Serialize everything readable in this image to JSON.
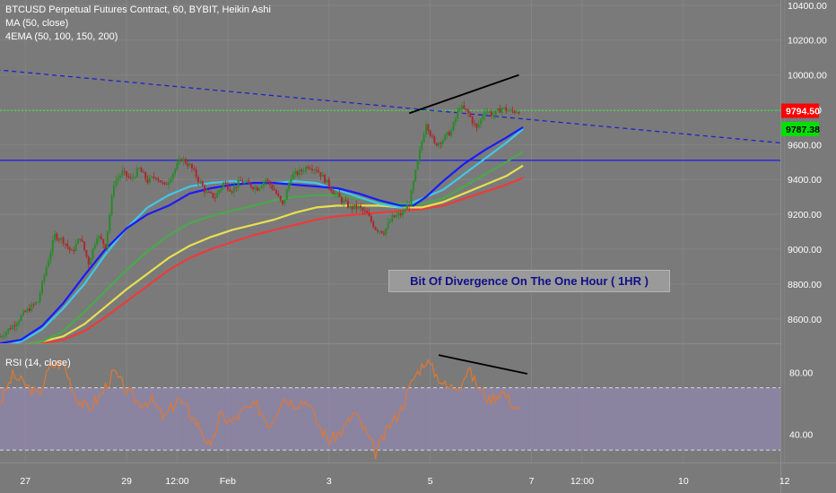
{
  "header": {
    "title": "BTCUSD Perpetual Futures Contract, 60, BYBIT, Heikin Ashi",
    "ma_label": "MA (50, close)",
    "ema_label": "4EMA (50, 100, 150, 200)",
    "rsi_label": "RSI (14, close)"
  },
  "annotation": {
    "text": "Bit Of Divergence On The One Hour ( 1HR )"
  },
  "colors": {
    "background": "#7a7a7a",
    "candle_up": "#2a8a2a",
    "candle_down": "#aa2a2a",
    "ma": "#1a1aff",
    "ema50": "#40c8e8",
    "ema100": "#4aa84a",
    "ema150": "#e8e050",
    "ema200": "#ee3a3a",
    "rsi": "#e07830",
    "rsi_band": "#8e86a8",
    "price_tag_red": "#ff0000",
    "price_tag_green": "#00e000"
  },
  "chart_data": {
    "type": "candlestick",
    "price_axis": {
      "ylim": [
        8460,
        10430
      ],
      "ticks": [
        "10400.00",
        "10200.00",
        "10000.00",
        "9800.00",
        "9600.00",
        "9400.00",
        "9200.00",
        "9000.00",
        "8800.00",
        "8600.00"
      ]
    },
    "rsi_axis": {
      "ylim": [
        22,
        98
      ],
      "ticks": [
        "80.00",
        "40.00"
      ],
      "upper_band": 70,
      "lower_band": 30
    },
    "x_axis": {
      "range_hours": [
        0,
        370
      ],
      "ticks": [
        {
          "label": "27",
          "t": 12
        },
        {
          "label": "29",
          "t": 60
        },
        {
          "label": "12:00",
          "t": 84
        },
        {
          "label": "Feb",
          "t": 108
        },
        {
          "label": "3",
          "t": 156
        },
        {
          "label": "5",
          "t": 204
        },
        {
          "label": "7",
          "t": 252
        },
        {
          "label": "12:00",
          "t": 276
        },
        {
          "label": "10",
          "t": 324
        },
        {
          "label": "12",
          "t": 372
        }
      ]
    },
    "last_price": {
      "label": "9794.50",
      "value": 9794.5
    },
    "ma_price": {
      "label": "9787.38",
      "value": 9787.38
    },
    "horizontal_line": {
      "value": 9510
    },
    "trendline_dashed": {
      "from": {
        "t": -2,
        "price": 10030
      },
      "to": {
        "t": 370,
        "price": 9610
      }
    },
    "divergence_price_line": {
      "from": {
        "t": 194,
        "price": 9780
      },
      "to": {
        "t": 246,
        "price": 10000
      }
    },
    "divergence_rsi_line": {
      "from": {
        "t": 208,
        "rsi": 91
      },
      "to": {
        "t": 250,
        "rsi": 79
      }
    },
    "price_path": [
      [
        0,
        8500
      ],
      [
        6,
        8560
      ],
      [
        12,
        8640
      ],
      [
        18,
        8700
      ],
      [
        22,
        8900
      ],
      [
        26,
        9080
      ],
      [
        30,
        9050
      ],
      [
        34,
        8980
      ],
      [
        38,
        9070
      ],
      [
        42,
        8920
      ],
      [
        46,
        9080
      ],
      [
        50,
        9020
      ],
      [
        54,
        9380
      ],
      [
        58,
        9440
      ],
      [
        62,
        9400
      ],
      [
        66,
        9460
      ],
      [
        70,
        9390
      ],
      [
        74,
        9420
      ],
      [
        78,
        9360
      ],
      [
        82,
        9440
      ],
      [
        86,
        9520
      ],
      [
        90,
        9480
      ],
      [
        94,
        9400
      ],
      [
        98,
        9320
      ],
      [
        102,
        9300
      ],
      [
        106,
        9380
      ],
      [
        110,
        9340
      ],
      [
        114,
        9390
      ],
      [
        118,
        9370
      ],
      [
        122,
        9350
      ],
      [
        126,
        9400
      ],
      [
        130,
        9340
      ],
      [
        134,
        9250
      ],
      [
        138,
        9420
      ],
      [
        142,
        9440
      ],
      [
        146,
        9480
      ],
      [
        150,
        9460
      ],
      [
        154,
        9400
      ],
      [
        158,
        9330
      ],
      [
        162,
        9280
      ],
      [
        166,
        9240
      ],
      [
        170,
        9240
      ],
      [
        174,
        9200
      ],
      [
        178,
        9120
      ],
      [
        182,
        9100
      ],
      [
        186,
        9180
      ],
      [
        190,
        9200
      ],
      [
        194,
        9260
      ],
      [
        198,
        9500
      ],
      [
        202,
        9730
      ],
      [
        206,
        9600
      ],
      [
        210,
        9630
      ],
      [
        214,
        9680
      ],
      [
        218,
        9820
      ],
      [
        222,
        9780
      ],
      [
        226,
        9690
      ],
      [
        230,
        9800
      ],
      [
        234,
        9770
      ],
      [
        238,
        9810
      ],
      [
        242,
        9790
      ],
      [
        246,
        9795
      ]
    ],
    "ma_path": [
      [
        0,
        8460
      ],
      [
        10,
        8480
      ],
      [
        20,
        8560
      ],
      [
        30,
        8690
      ],
      [
        40,
        8850
      ],
      [
        50,
        9000
      ],
      [
        60,
        9120
      ],
      [
        70,
        9200
      ],
      [
        80,
        9250
      ],
      [
        90,
        9320
      ],
      [
        100,
        9350
      ],
      [
        110,
        9370
      ],
      [
        120,
        9380
      ],
      [
        130,
        9380
      ],
      [
        140,
        9370
      ],
      [
        150,
        9360
      ],
      [
        160,
        9350
      ],
      [
        170,
        9320
      ],
      [
        180,
        9280
      ],
      [
        190,
        9250
      ],
      [
        196,
        9250
      ],
      [
        202,
        9300
      ],
      [
        210,
        9390
      ],
      [
        220,
        9490
      ],
      [
        230,
        9570
      ],
      [
        240,
        9640
      ],
      [
        248,
        9700
      ]
    ],
    "ema50_path": [
      [
        0,
        8440
      ],
      [
        10,
        8470
      ],
      [
        20,
        8540
      ],
      [
        30,
        8660
      ],
      [
        40,
        8800
      ],
      [
        50,
        8970
      ],
      [
        60,
        9120
      ],
      [
        70,
        9240
      ],
      [
        80,
        9310
      ],
      [
        90,
        9360
      ],
      [
        100,
        9380
      ],
      [
        110,
        9390
      ],
      [
        120,
        9380
      ],
      [
        130,
        9380
      ],
      [
        140,
        9390
      ],
      [
        150,
        9380
      ],
      [
        160,
        9340
      ],
      [
        170,
        9300
      ],
      [
        180,
        9260
      ],
      [
        190,
        9240
      ],
      [
        200,
        9290
      ],
      [
        210,
        9340
      ],
      [
        220,
        9430
      ],
      [
        230,
        9520
      ],
      [
        240,
        9610
      ],
      [
        248,
        9690
      ]
    ],
    "ema100_path": [
      [
        0,
        8440
      ],
      [
        10,
        8450
      ],
      [
        20,
        8470
      ],
      [
        30,
        8530
      ],
      [
        40,
        8640
      ],
      [
        50,
        8760
      ],
      [
        60,
        8880
      ],
      [
        70,
        8990
      ],
      [
        80,
        9080
      ],
      [
        90,
        9150
      ],
      [
        100,
        9190
      ],
      [
        110,
        9220
      ],
      [
        120,
        9250
      ],
      [
        130,
        9280
      ],
      [
        140,
        9300
      ],
      [
        150,
        9310
      ],
      [
        160,
        9310
      ],
      [
        170,
        9290
      ],
      [
        180,
        9270
      ],
      [
        190,
        9260
      ],
      [
        200,
        9260
      ],
      [
        210,
        9290
      ],
      [
        220,
        9360
      ],
      [
        230,
        9430
      ],
      [
        240,
        9500
      ],
      [
        248,
        9560
      ]
    ],
    "ema150_path": [
      [
        0,
        8440
      ],
      [
        10,
        8450
      ],
      [
        20,
        8470
      ],
      [
        30,
        8500
      ],
      [
        40,
        8570
      ],
      [
        50,
        8670
      ],
      [
        60,
        8770
      ],
      [
        70,
        8860
      ],
      [
        80,
        8950
      ],
      [
        90,
        9020
      ],
      [
        100,
        9070
      ],
      [
        110,
        9110
      ],
      [
        120,
        9140
      ],
      [
        130,
        9170
      ],
      [
        140,
        9210
      ],
      [
        150,
        9240
      ],
      [
        160,
        9250
      ],
      [
        170,
        9250
      ],
      [
        180,
        9250
      ],
      [
        190,
        9240
      ],
      [
        200,
        9240
      ],
      [
        210,
        9270
      ],
      [
        220,
        9320
      ],
      [
        230,
        9370
      ],
      [
        240,
        9420
      ],
      [
        248,
        9480
      ]
    ],
    "ema200_path": [
      [
        0,
        8440
      ],
      [
        10,
        8450
      ],
      [
        20,
        8460
      ],
      [
        30,
        8480
      ],
      [
        40,
        8530
      ],
      [
        50,
        8610
      ],
      [
        60,
        8700
      ],
      [
        70,
        8790
      ],
      [
        80,
        8880
      ],
      [
        90,
        8950
      ],
      [
        100,
        9000
      ],
      [
        110,
        9040
      ],
      [
        120,
        9080
      ],
      [
        130,
        9110
      ],
      [
        140,
        9140
      ],
      [
        150,
        9170
      ],
      [
        160,
        9190
      ],
      [
        170,
        9200
      ],
      [
        180,
        9210
      ],
      [
        190,
        9220
      ],
      [
        200,
        9230
      ],
      [
        210,
        9250
      ],
      [
        220,
        9290
      ],
      [
        230,
        9330
      ],
      [
        240,
        9370
      ],
      [
        248,
        9410
      ]
    ],
    "rsi_path": [
      [
        0,
        60
      ],
      [
        6,
        78
      ],
      [
        12,
        72
      ],
      [
        18,
        65
      ],
      [
        24,
        84
      ],
      [
        30,
        86
      ],
      [
        36,
        64
      ],
      [
        42,
        56
      ],
      [
        48,
        66
      ],
      [
        54,
        80
      ],
      [
        60,
        68
      ],
      [
        66,
        60
      ],
      [
        72,
        62
      ],
      [
        78,
        50
      ],
      [
        84,
        63
      ],
      [
        90,
        54
      ],
      [
        96,
        42
      ],
      [
        100,
        30
      ],
      [
        104,
        52
      ],
      [
        110,
        48
      ],
      [
        116,
        56
      ],
      [
        122,
        58
      ],
      [
        128,
        46
      ],
      [
        134,
        64
      ],
      [
        140,
        60
      ],
      [
        146,
        62
      ],
      [
        150,
        48
      ],
      [
        156,
        36
      ],
      [
        162,
        42
      ],
      [
        168,
        54
      ],
      [
        174,
        40
      ],
      [
        178,
        28
      ],
      [
        184,
        44
      ],
      [
        190,
        56
      ],
      [
        196,
        76
      ],
      [
        202,
        88
      ],
      [
        206,
        80
      ],
      [
        212,
        70
      ],
      [
        218,
        72
      ],
      [
        222,
        82
      ],
      [
        226,
        72
      ],
      [
        232,
        62
      ],
      [
        238,
        68
      ],
      [
        244,
        58
      ],
      [
        248,
        55
      ]
    ]
  }
}
